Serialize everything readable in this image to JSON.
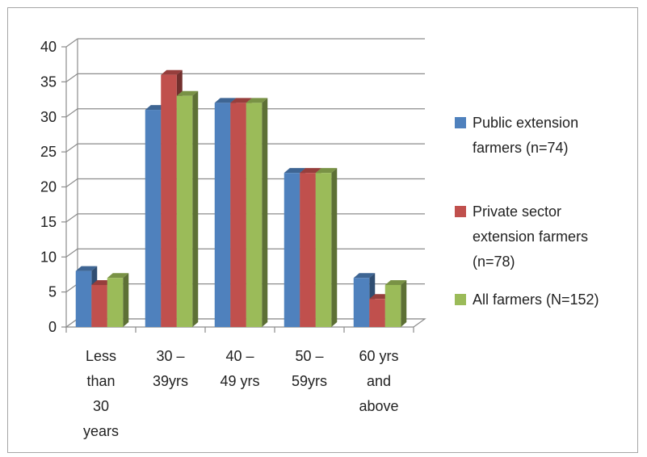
{
  "chart_data": {
    "type": "bar",
    "categories": [
      [
        "Less",
        "than",
        "30",
        "years"
      ],
      [
        "30 –",
        "39yrs"
      ],
      [
        "40 –",
        "49 yrs"
      ],
      [
        "50 –",
        "59yrs"
      ],
      [
        "60 yrs",
        "and",
        "above"
      ]
    ],
    "series": [
      {
        "name": [
          "Public extension",
          "farmers (n=74)"
        ],
        "values": [
          8,
          31,
          32,
          22,
          7
        ],
        "color": "#4f81bd"
      },
      {
        "name": [
          "Private sector",
          "extension farmers",
          "(n=78)"
        ],
        "values": [
          6,
          36,
          32,
          22,
          4
        ],
        "color": "#c0504d"
      },
      {
        "name": [
          "All farmers (N=152)"
        ],
        "values": [
          7,
          33,
          32,
          22,
          6
        ],
        "color": "#9bbb59"
      }
    ],
    "ylim": [
      0,
      40
    ],
    "yticks": [
      0,
      5,
      10,
      15,
      20,
      25,
      30,
      35,
      40
    ],
    "grid": true,
    "legend_position": "right",
    "title": "",
    "xlabel": "",
    "ylabel": ""
  }
}
